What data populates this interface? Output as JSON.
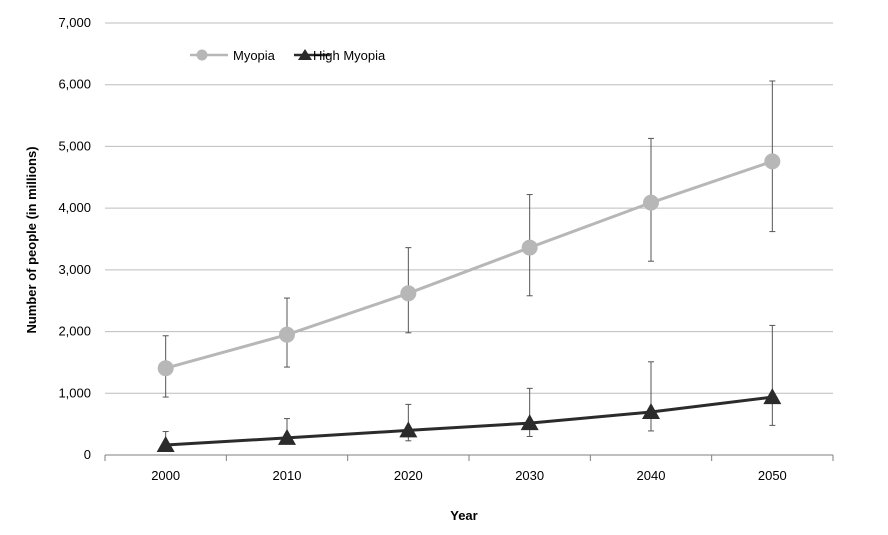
{
  "chart_data": {
    "type": "line",
    "title": "",
    "xlabel": "Year",
    "ylabel": "Number of people (in millions)",
    "categories": [
      "2000",
      "2010",
      "2020",
      "2030",
      "2040",
      "2050"
    ],
    "ylim": [
      0,
      7000
    ],
    "yticks": [
      0,
      1000,
      2000,
      3000,
      4000,
      5000,
      6000,
      7000
    ],
    "ytick_labels": [
      "0",
      "1,000",
      "2,000",
      "3,000",
      "4,000",
      "5,000",
      "6,000",
      "7,000"
    ],
    "grid": true,
    "legend_position": "top-left",
    "series": [
      {
        "name": "Myopia",
        "marker": "circle",
        "color": "#b7b7b7",
        "values": [
          1406,
          1950,
          2620,
          3361,
          4089,
          4758
        ],
        "error_low": [
          939,
          1425,
          1980,
          2580,
          3140,
          3620
        ],
        "error_high": [
          1932,
          2543,
          3360,
          4220,
          5130,
          6060
        ]
      },
      {
        "name": "High Myopia",
        "marker": "triangle",
        "color": "#2b2b2b",
        "values": [
          163,
          277,
          399,
          517,
          696,
          938
        ],
        "error_low": [
          90,
          190,
          230,
          300,
          390,
          480
        ],
        "error_high": [
          380,
          590,
          820,
          1080,
          1510,
          2100
        ]
      }
    ]
  }
}
